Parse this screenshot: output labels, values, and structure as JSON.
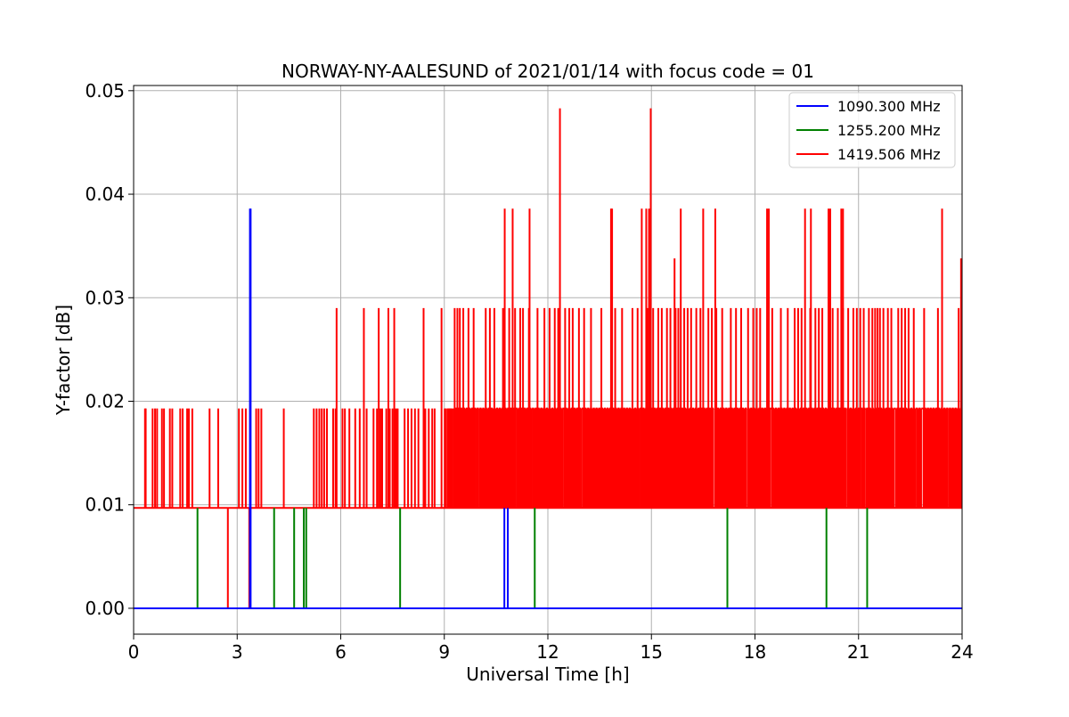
{
  "chart_data": {
    "type": "line",
    "title": "NORWAY-NY-AALESUND of 2021/01/14 with focus code = 01",
    "xlabel": "Universal Time [h]",
    "ylabel": "Y-factor [dB]",
    "xlim": [
      0,
      24
    ],
    "ylim": [
      -0.0025,
      0.0505
    ],
    "xticks": [
      0,
      3,
      6,
      9,
      12,
      15,
      18,
      21,
      24
    ],
    "xtick_labels": [
      "0",
      "3",
      "6",
      "9",
      "12",
      "15",
      "18",
      "21",
      "24"
    ],
    "yticks": [
      0.0,
      0.01,
      0.02,
      0.03,
      0.04,
      0.05
    ],
    "ytick_labels": [
      "0.00",
      "0.01",
      "0.02",
      "0.03",
      "0.04",
      "0.05"
    ],
    "grid": true,
    "legend_position": "top-right",
    "levels": [
      0.0,
      0.0097,
      0.0193,
      0.029,
      0.0386,
      0.0483
    ],
    "series": [
      {
        "name": "1090.300 MHz",
        "color": "#0000ff",
        "baseline": 0.0,
        "spikes": [
          {
            "x": 3.37,
            "y": 0.0386
          },
          {
            "x": 3.39,
            "y": 0.0386
          },
          {
            "x": 10.74,
            "y": 0.0097
          },
          {
            "x": 10.84,
            "y": 0.0097
          }
        ]
      },
      {
        "name": "1255.200 MHz",
        "color": "#008000",
        "baseline": 0.0,
        "spikes": [
          {
            "x": 1.85,
            "y": 0.0097
          },
          {
            "x": 4.07,
            "y": 0.0097
          },
          {
            "x": 4.65,
            "y": 0.0097
          },
          {
            "x": 4.93,
            "y": 0.0097
          },
          {
            "x": 5.0,
            "y": 0.0097
          },
          {
            "x": 7.72,
            "y": 0.0097
          },
          {
            "x": 11.62,
            "y": 0.0097
          },
          {
            "x": 17.2,
            "y": 0.0097
          },
          {
            "x": 20.07,
            "y": 0.0097
          },
          {
            "x": 21.25,
            "y": 0.0097
          }
        ]
      },
      {
        "name": "1419.506 MHz",
        "color": "#ff0000",
        "baseline": 0.0097,
        "dips": [
          2.73,
          3.35
        ],
        "spikes_0193": [
          0.33,
          0.35,
          0.55,
          0.62,
          0.68,
          0.82,
          0.88,
          1.05,
          1.12,
          1.35,
          1.42,
          1.55,
          1.6,
          1.7,
          2.2,
          2.45,
          3.05,
          3.15,
          3.25,
          3.55,
          3.62,
          3.7,
          4.35,
          5.22,
          5.3,
          5.38,
          5.45,
          5.52,
          5.6,
          5.78,
          5.85,
          6.05,
          6.12,
          6.25,
          6.42,
          6.55,
          6.75,
          6.95,
          7.05,
          7.15,
          7.2,
          7.32,
          7.42,
          7.5,
          7.6,
          7.65,
          7.85,
          7.95,
          8.05,
          8.15,
          8.25,
          8.45,
          8.55,
          8.65,
          8.72
        ],
        "spikes_029": [
          5.88,
          6.67,
          7.1,
          7.38,
          7.55,
          8.4,
          8.92,
          9.3,
          9.38,
          9.45,
          9.55,
          9.7,
          9.85,
          10.2,
          10.32,
          10.45,
          10.7,
          10.88,
          11.05,
          11.2,
          11.28,
          11.45,
          11.7,
          11.9,
          12.05,
          12.2,
          12.3,
          12.5,
          12.62,
          12.72,
          12.9,
          13.05,
          13.25,
          13.55,
          13.95,
          14.15,
          14.45,
          14.6,
          14.88,
          15.05,
          15.2,
          15.3,
          15.45,
          15.55,
          15.7,
          15.78,
          15.95,
          16.05,
          16.15,
          16.3,
          16.42,
          16.65,
          16.75,
          16.88,
          17.05,
          17.3,
          17.45,
          17.6,
          17.8,
          17.95,
          18.05,
          18.15,
          18.5,
          18.75,
          18.95,
          19.15,
          19.25,
          19.35,
          19.6,
          19.75,
          19.85,
          19.95,
          20.25,
          20.4,
          20.55,
          20.7,
          20.85,
          20.95,
          21.05,
          21.15,
          21.3,
          21.4,
          21.48,
          21.55,
          21.62,
          21.72,
          21.85,
          21.95,
          22.15,
          22.25,
          22.35,
          22.45,
          22.6,
          22.9,
          23.3,
          23.9
        ],
        "spikes_0386": [
          10.75,
          10.98,
          11.47,
          13.83,
          13.86,
          14.72,
          14.85,
          14.93,
          15.85,
          16.5,
          16.85,
          18.35,
          18.4,
          19.45,
          19.62,
          20.13,
          20.18,
          20.5,
          20.55,
          23.42
        ],
        "spikes_high": [
          {
            "x": 12.35,
            "y": 0.0483
          },
          {
            "x": 14.98,
            "y": 0.0483
          },
          {
            "x": 15.67,
            "y": 0.0338
          },
          {
            "x": 23.97,
            "y": 0.0338
          }
        ],
        "dense_region": [
          9.0,
          24.0
        ]
      }
    ]
  }
}
